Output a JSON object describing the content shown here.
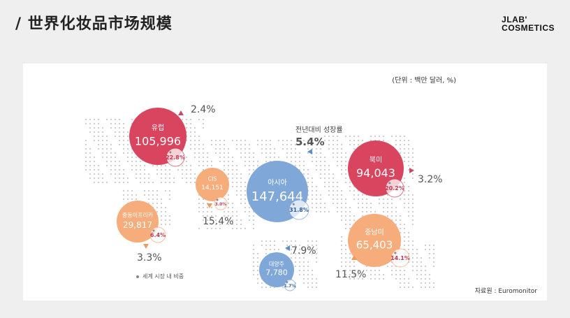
{
  "header": {
    "title": "/ 世界化妆品市场规模",
    "logo_line1": "JLAB'",
    "logo_line2": "COSMETICS"
  },
  "panel": {
    "unit_note": "(단위 : 백만 달러, %)",
    "source": "자료원 : Euromonitor",
    "legend_text": "세계 시장 내 비중",
    "overall_growth_label": "전년대비 성장률",
    "overall_growth_value": "5.4%"
  },
  "colors": {
    "red": "#d9455f",
    "blue": "#7fa7d8",
    "orange": "#f6ad7b",
    "arrow_red": "#c94a68",
    "arrow_blue": "#5b8fc9",
    "arrow_orange": "#ee9a5f"
  },
  "chart_data": {
    "type": "bubble",
    "title": "",
    "unit": "백만 달러, %",
    "regions": [
      {
        "name": "유럽",
        "market_size": 105996,
        "market_size_label": "105,996",
        "share": 22.8,
        "share_label": "22.8%",
        "growth": 2.4,
        "growth_label": "2.4%",
        "color": "red"
      },
      {
        "name": "CIS",
        "market_size": 14151,
        "market_size_label": "14,151",
        "share": 3.0,
        "share_label": "3.0%",
        "growth": 15.4,
        "growth_label": "15.4%",
        "color": "orange"
      },
      {
        "name": "중동아프리카",
        "market_size": 29817,
        "market_size_label": "29,817",
        "share": 6.4,
        "share_label": "6.4%",
        "growth": 3.3,
        "growth_label": "3.3%",
        "color": "orange"
      },
      {
        "name": "아시아",
        "market_size": 147644,
        "market_size_label": "147,644",
        "share": 31.8,
        "share_label": "31.8%",
        "growth": 5.4,
        "growth_label": "",
        "color": "blue"
      },
      {
        "name": "대양주",
        "market_size": 7780,
        "market_size_label": "7,780",
        "share": 1.7,
        "share_label": "1.7%",
        "growth": 7.9,
        "growth_label": "7.9%",
        "color": "blue"
      },
      {
        "name": "북미",
        "market_size": 94043,
        "market_size_label": "94,043",
        "share": 20.2,
        "share_label": "20.2%",
        "growth": 3.2,
        "growth_label": "3.2%",
        "color": "red"
      },
      {
        "name": "중남미",
        "market_size": 65403,
        "market_size_label": "65,403",
        "share": 14.1,
        "share_label": "14.1%",
        "growth": 11.5,
        "growth_label": "11.5%",
        "color": "orange"
      }
    ]
  }
}
